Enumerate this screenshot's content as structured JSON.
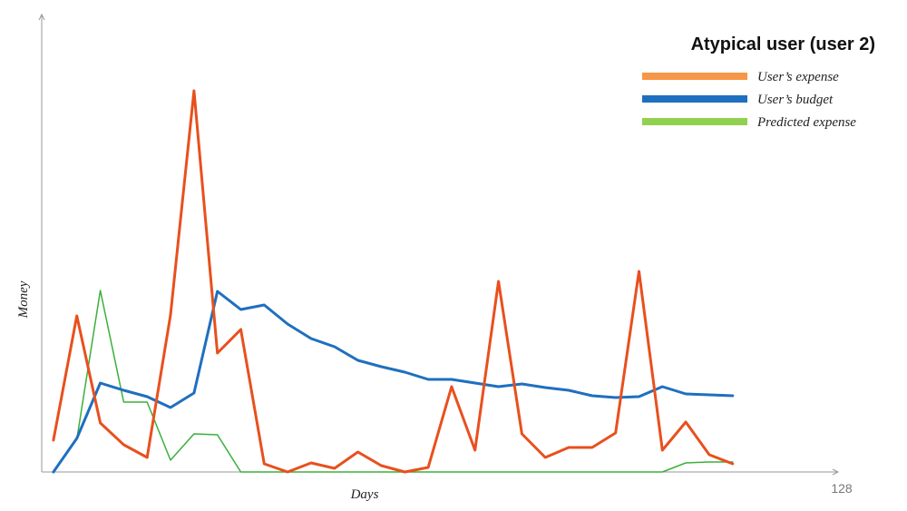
{
  "chart_data": {
    "type": "line",
    "title": "Atypical user (user 2)",
    "xlabel": "Days",
    "ylabel": "Money",
    "x_tick_labels": [
      "128"
    ],
    "grid": false,
    "legend_position": "top-right",
    "x": [
      0,
      1,
      2,
      3,
      4,
      5,
      6,
      7,
      8,
      9,
      10,
      11,
      12,
      13,
      14,
      15,
      16,
      17,
      18,
      19,
      20,
      21,
      22,
      23,
      24,
      25,
      26,
      27,
      28,
      29
    ],
    "xlim": [
      -0.5,
      33.5
    ],
    "ylim": [
      0,
      42
    ],
    "series": [
      {
        "name": "User’s expense",
        "legend_color": "#f79646",
        "color": "#e8501e",
        "stroke": 3,
        "values": [
          3.5,
          17.2,
          5.4,
          3.0,
          1.6,
          17.3,
          42.0,
          13.1,
          15.7,
          0.9,
          0.0,
          1.0,
          0.4,
          2.2,
          0.7,
          0.0,
          0.5,
          9.4,
          2.4,
          21.0,
          4.2,
          1.6,
          2.7,
          2.7,
          4.3,
          22.1,
          2.4,
          5.5,
          1.9,
          0.9
        ]
      },
      {
        "name": "User’s budget",
        "legend_color": "#1f6fbf",
        "color": "#1f6fbf",
        "stroke": 3,
        "values": [
          0.0,
          3.7,
          9.8,
          9.0,
          8.3,
          7.1,
          8.7,
          19.9,
          17.9,
          18.4,
          16.3,
          14.7,
          13.8,
          12.3,
          11.6,
          11.0,
          10.2,
          10.2,
          9.8,
          9.4,
          9.7,
          9.3,
          9.0,
          8.4,
          8.2,
          8.3,
          9.4,
          8.6,
          8.5,
          8.4
        ]
      },
      {
        "name": "Predicted expense",
        "legend_color": "#92d050",
        "color": "#3ab03a",
        "stroke": 1.5,
        "values": [
          0.0,
          3.6,
          20.0,
          7.7,
          7.7,
          1.3,
          4.2,
          4.1,
          0.0,
          0.0,
          0.0,
          0.0,
          0.0,
          0.0,
          0.0,
          0.0,
          0.0,
          0.0,
          0.0,
          0.0,
          0.0,
          0.0,
          0.0,
          0.0,
          0.0,
          0.0,
          0.0,
          1.0,
          1.1,
          1.1
        ]
      }
    ]
  }
}
